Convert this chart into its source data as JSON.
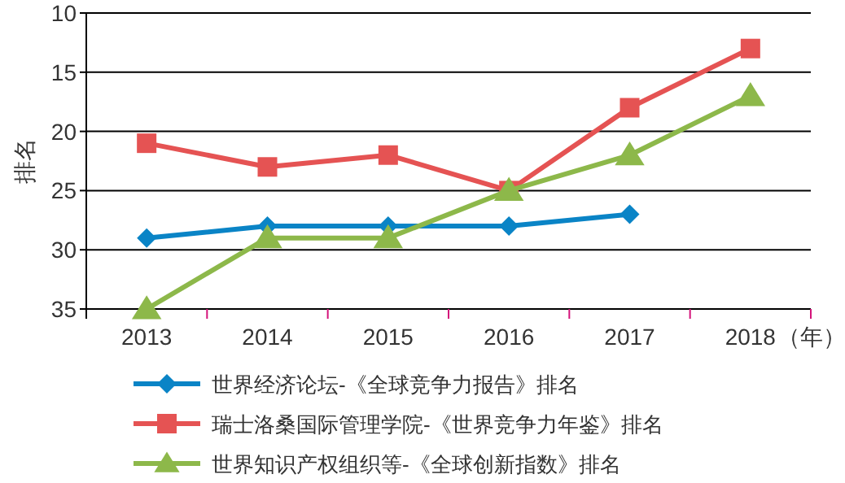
{
  "chart_data": {
    "type": "line",
    "ylabel": "排名",
    "xlabel": "（年）",
    "categories": [
      "2013",
      "2014",
      "2015",
      "2016",
      "2017",
      "2018"
    ],
    "ylim": [
      35,
      10
    ],
    "yticks": [
      10,
      15,
      20,
      25,
      30,
      35
    ],
    "grid": "y",
    "legend": "bottom",
    "series": [
      {
        "name": "世界经济论坛-《全球竞争力报告》排名",
        "color": "#0a84c6",
        "marker": "diamond",
        "values": [
          29,
          28,
          28,
          28,
          27,
          null
        ]
      },
      {
        "name": "瑞士洛桑国际管理学院-《世界竞争力年鉴》排名",
        "color": "#e55353",
        "marker": "square",
        "values": [
          21,
          23,
          22,
          25,
          18,
          13
        ]
      },
      {
        "name": "世界知识产权组织等-《全球创新指数》排名",
        "color": "#8db84a",
        "marker": "triangle",
        "values": [
          35,
          29,
          29,
          25,
          22,
          17
        ]
      }
    ]
  }
}
